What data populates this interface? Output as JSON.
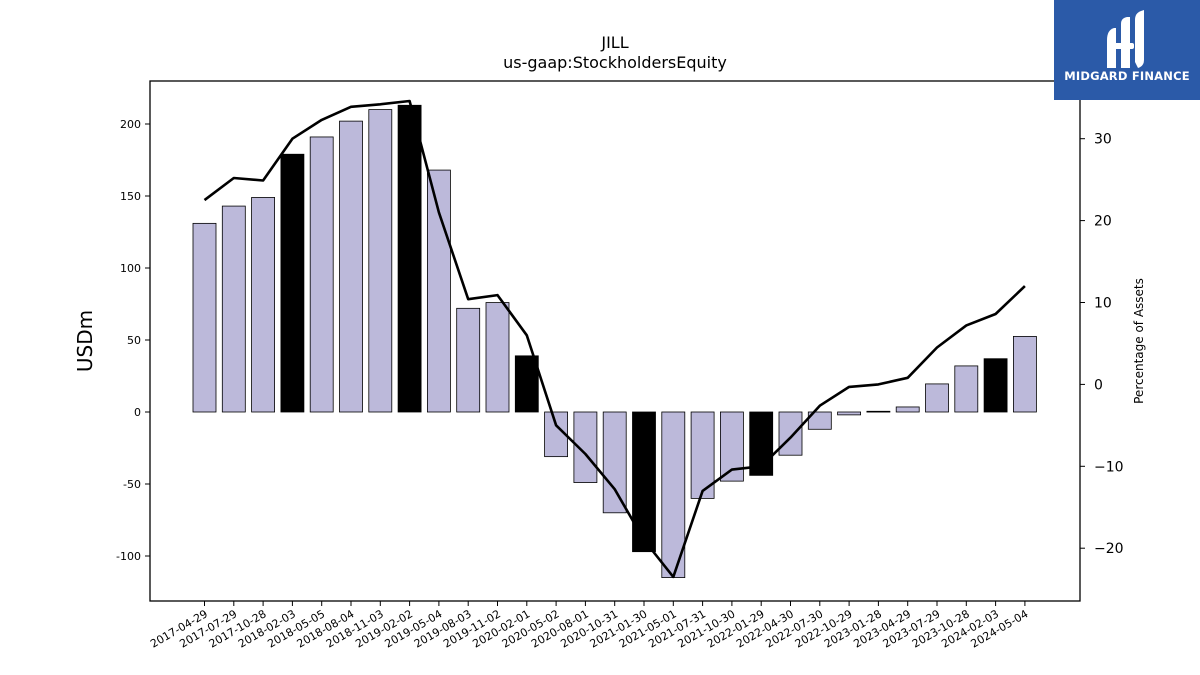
{
  "chart_data": {
    "type": "bar",
    "title": "JILL",
    "subtitle": "us-gaap:StockholdersEquity",
    "ylabel": "USDm",
    "y2label": "Percentage of Assets",
    "ylim": [
      -130,
      230
    ],
    "y2lim": [
      -26.5,
      37.5
    ],
    "yticks": [
      -100,
      -50,
      0,
      50,
      100,
      150,
      200
    ],
    "y2ticks": [
      -20,
      -10,
      0,
      10,
      20,
      30
    ],
    "categories": [
      "2017-04-29",
      "2017-07-29",
      "2017-10-28",
      "2018-02-03",
      "2018-05-05",
      "2018-08-04",
      "2018-11-03",
      "2019-02-02",
      "2019-05-04",
      "2019-08-03",
      "2019-11-02",
      "2020-02-01",
      "2020-05-02",
      "2020-08-01",
      "2020-10-31",
      "2021-01-30",
      "2021-05-01",
      "2021-07-31",
      "2021-10-30",
      "2022-01-29",
      "2022-04-30",
      "2022-07-30",
      "2022-10-29",
      "2023-01-28",
      "2023-04-29",
      "2023-07-29",
      "2023-10-28",
      "2024-02-03",
      "2024-05-04"
    ],
    "series": [
      {
        "type": "bar",
        "values": [
          131,
          143,
          149,
          179,
          191,
          202,
          210,
          213,
          168,
          72,
          76,
          39,
          -31,
          -49,
          -70,
          -97,
          -115,
          -60,
          -48,
          -44,
          -30,
          -12,
          -2,
          0.5,
          3.5,
          19.5,
          32,
          37,
          52.5
        ],
        "highlight": [
          false,
          false,
          false,
          true,
          false,
          false,
          false,
          true,
          false,
          false,
          false,
          true,
          false,
          false,
          false,
          true,
          false,
          false,
          false,
          true,
          false,
          false,
          false,
          false,
          false,
          false,
          false,
          true,
          false
        ]
      },
      {
        "type": "line",
        "axis": "right",
        "values": [
          22.5,
          25.2,
          24.9,
          30.0,
          32.3,
          33.9,
          34.2,
          34.6,
          21.0,
          10.4,
          10.9,
          6.0,
          -5.0,
          -8.5,
          -12.8,
          -19.0,
          -23.5,
          -13.0,
          -10.4,
          -10.0,
          -6.5,
          -2.6,
          -0.3,
          0.0,
          0.8,
          4.5,
          7.2,
          8.6,
          12.0
        ]
      }
    ],
    "colors": {
      "bar": "#bcb9da",
      "bar_highlight": "#000000",
      "line": "#000000"
    }
  },
  "logo": {
    "text": "MIDGARD FINANCE",
    "bg": "#2b5aa8"
  }
}
